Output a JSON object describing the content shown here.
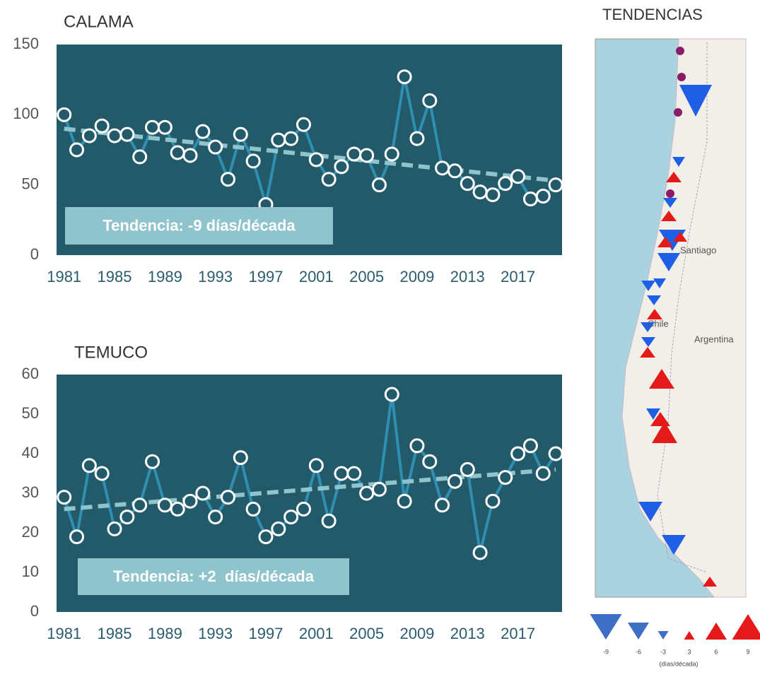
{
  "chart_data": [
    {
      "type": "line",
      "title": "CALAMA",
      "x": [
        1981,
        1982,
        1983,
        1984,
        1985,
        1986,
        1987,
        1988,
        1989,
        1990,
        1991,
        1992,
        1993,
        1994,
        1995,
        1996,
        1997,
        1998,
        1999,
        2000,
        2001,
        2002,
        2003,
        2004,
        2005,
        2006,
        2007,
        2008,
        2009,
        2010,
        2011,
        2012,
        2013,
        2014,
        2015,
        2016,
        2017,
        2018,
        2019,
        2020
      ],
      "series": [
        {
          "color": "#2f8fb0",
          "values": [
            100,
            75,
            85,
            92,
            85,
            86,
            70,
            91,
            91,
            73,
            71,
            88,
            77,
            54,
            86,
            67,
            36,
            82,
            83,
            93,
            68,
            54,
            63,
            72,
            71,
            50,
            72,
            127,
            83,
            110,
            62,
            60,
            51,
            45,
            43,
            51,
            56,
            40,
            42,
            50
          ]
        }
      ],
      "trend": {
        "x": [
          1981,
          2020
        ],
        "values": [
          90,
          53
        ],
        "color": "#8fc4cc"
      },
      "annotation": "Tendencia: -9 días/década",
      "xlim": [
        1980.4,
        2020.5
      ],
      "xticks": [
        1981,
        1985,
        1989,
        1993,
        1997,
        2001,
        2005,
        2009,
        2013,
        2017
      ],
      "ylim": [
        0,
        150
      ],
      "yticks": [
        0,
        50,
        100,
        150
      ],
      "background": "#235a6a"
    },
    {
      "type": "line",
      "title": "TEMUCO",
      "x": [
        1981,
        1982,
        1983,
        1984,
        1985,
        1986,
        1987,
        1988,
        1989,
        1990,
        1991,
        1992,
        1993,
        1994,
        1995,
        1996,
        1997,
        1998,
        1999,
        2000,
        2001,
        2002,
        2003,
        2004,
        2005,
        2006,
        2007,
        2008,
        2009,
        2010,
        2011,
        2012,
        2013,
        2014,
        2015,
        2016,
        2017,
        2018,
        2019,
        2020
      ],
      "series": [
        {
          "color": "#2f8fb0",
          "values": [
            29,
            19,
            37,
            35,
            21,
            24,
            27,
            38,
            27,
            26,
            28,
            30,
            24,
            29,
            39,
            26,
            19,
            21,
            24,
            26,
            37,
            23,
            35,
            35,
            30,
            31,
            55,
            28,
            42,
            38,
            27,
            33,
            36,
            15,
            28,
            34,
            40,
            42,
            35,
            40
          ]
        }
      ],
      "trend": {
        "x": [
          1981,
          2020
        ],
        "values": [
          26,
          36
        ],
        "color": "#8fc4cc"
      },
      "annotation": "Tendencia: +2  días/década",
      "xlim": [
        1980.4,
        2020.5
      ],
      "xticks": [
        1981,
        1985,
        1989,
        1993,
        1997,
        2001,
        2005,
        2009,
        2013,
        2017
      ],
      "ylim": [
        0,
        60
      ],
      "yticks": [
        0,
        10,
        20,
        30,
        40,
        50,
        60
      ],
      "background": "#235a6a"
    }
  ],
  "map": {
    "title": "TENDENCIAS",
    "labels": [
      "Santiago",
      "Chile",
      "Argentina"
    ],
    "legend": {
      "values": [
        -9,
        -6,
        -3,
        3,
        6,
        9
      ],
      "unit": "(días/década)",
      "negative_color": "#3f6fc4",
      "positive_color": "#e41a1a"
    }
  }
}
